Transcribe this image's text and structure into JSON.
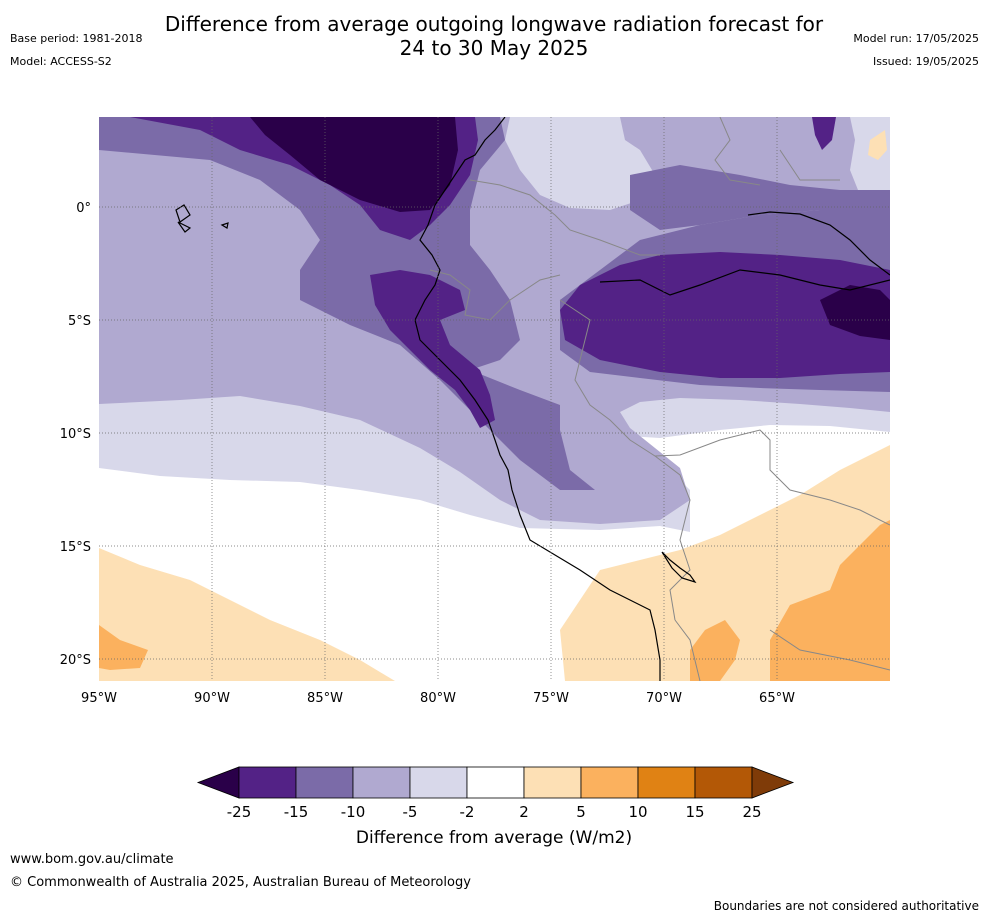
{
  "title": {
    "line1": "Difference from average outgoing longwave radiation forecast for",
    "line2": "24 to 30 May 2025"
  },
  "meta": {
    "base_period": "Base period: 1981-2018",
    "model": "Model: ACCESS-S2",
    "model_run": "Model run: 17/05/2025",
    "issued": "Issued: 19/05/2025"
  },
  "map": {
    "lat_labels": [
      "0°",
      "5°S",
      "10°S",
      "15°S",
      "20°S"
    ],
    "lon_labels": [
      "95°W",
      "90°W",
      "85°W",
      "80°W",
      "75°W",
      "70°W",
      "65°W"
    ]
  },
  "colorbar": {
    "label": "Difference from average (W/m2)",
    "ticks": [
      "-25",
      "-15",
      "-10",
      "-5",
      "-2",
      "2",
      "5",
      "10",
      "15",
      "25"
    ],
    "colors": [
      "#2a0049",
      "#532286",
      "#7b6ba8",
      "#b0a9d0",
      "#d8d8ea",
      "#ffffff",
      "#fde0b5",
      "#fbb15e",
      "#e08214",
      "#b35806",
      "#7f3b08"
    ]
  },
  "footer": {
    "url": "www.bom.gov.au/climate",
    "copyright": "© Commonwealth of Australia 2025, Australian Bureau of Meteorology",
    "note": "Boundaries are not considered authoritative"
  }
}
